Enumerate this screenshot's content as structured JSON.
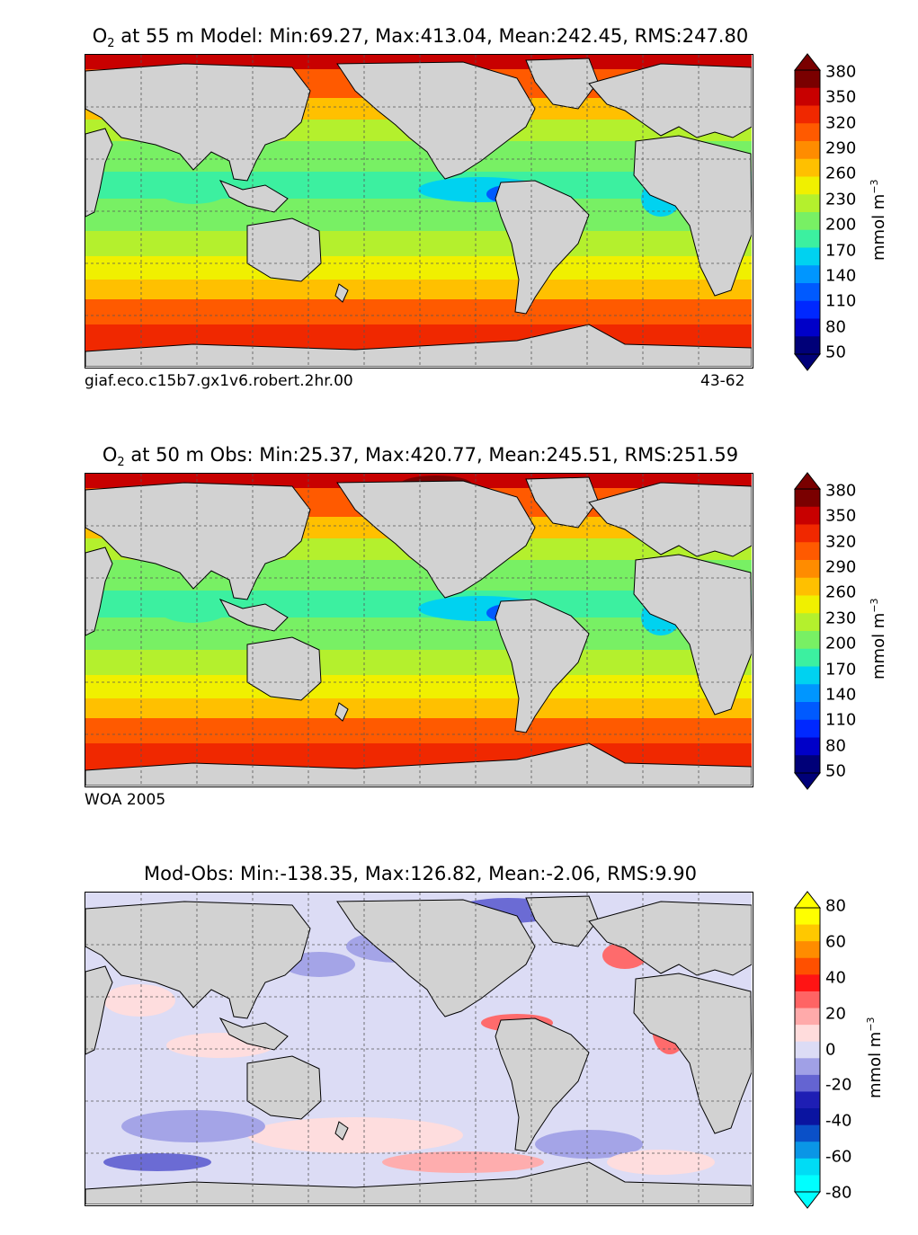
{
  "panels": [
    {
      "title_prefix": "O",
      "title_sub": "2",
      "title_rest": " at 55 m Model: Min:69.27, Max:413.04, Mean:242.45, RMS:247.80",
      "caption_left": "giaf.eco.c15b7.gx1v6.robert.2hr.00",
      "caption_right": "43-62",
      "colorbar": {
        "ticks": [
          "380",
          "350",
          "320",
          "290",
          "260",
          "230",
          "200",
          "170",
          "140",
          "110",
          "80",
          "50"
        ],
        "unit_text": "mmol m",
        "unit_sup": "−3",
        "colors": [
          "#7a0000",
          "#c80000",
          "#f02800",
          "#ff5a00",
          "#ff8c00",
          "#ffc000",
          "#f0f000",
          "#b4f02d",
          "#78f064",
          "#3cf0a0",
          "#00d2f0",
          "#0096ff",
          "#005aff",
          "#0028ff",
          "#0000c8",
          "#000078"
        ]
      }
    },
    {
      "title_prefix": "O",
      "title_sub": "2",
      "title_rest": " at 50 m Obs: Min:25.37, Max:420.77, Mean:245.51, RMS:251.59",
      "caption_left": "WOA 2005",
      "caption_right": "",
      "colorbar": {
        "ticks": [
          "380",
          "350",
          "320",
          "290",
          "260",
          "230",
          "200",
          "170",
          "140",
          "110",
          "80",
          "50"
        ],
        "unit_text": "mmol m",
        "unit_sup": "−3",
        "colors": [
          "#7a0000",
          "#c80000",
          "#f02800",
          "#ff5a00",
          "#ff8c00",
          "#ffc000",
          "#f0f000",
          "#b4f02d",
          "#78f064",
          "#3cf0a0",
          "#00d2f0",
          "#0096ff",
          "#005aff",
          "#0028ff",
          "#0000c8",
          "#000078"
        ]
      }
    },
    {
      "title_prefix": "",
      "title_sub": "",
      "title_rest": "Mod-Obs: Min:-138.35, Max:126.82, Mean:-2.06, RMS:9.90",
      "caption_left": "",
      "caption_right": "",
      "colorbar": {
        "ticks": [
          "80",
          "60",
          "40",
          "20",
          "0",
          "-20",
          "-40",
          "-60",
          "-80"
        ],
        "unit_text": "mmol m",
        "unit_sup": "−3",
        "colors": [
          "#ffff00",
          "#ffc800",
          "#ff8c00",
          "#ff5000",
          "#ff1414",
          "#ff6464",
          "#ffaaaa",
          "#ffdcdc",
          "#dcdcf5",
          "#a0a0e6",
          "#6464d2",
          "#1e1eb4",
          "#0a14a0",
          "#0a50c8",
          "#0a96e6",
          "#00dcf5",
          "#00ffff"
        ]
      }
    }
  ],
  "colors": {
    "land": "#d2d2d2",
    "coast": "#000000",
    "grid": "#555555"
  }
}
